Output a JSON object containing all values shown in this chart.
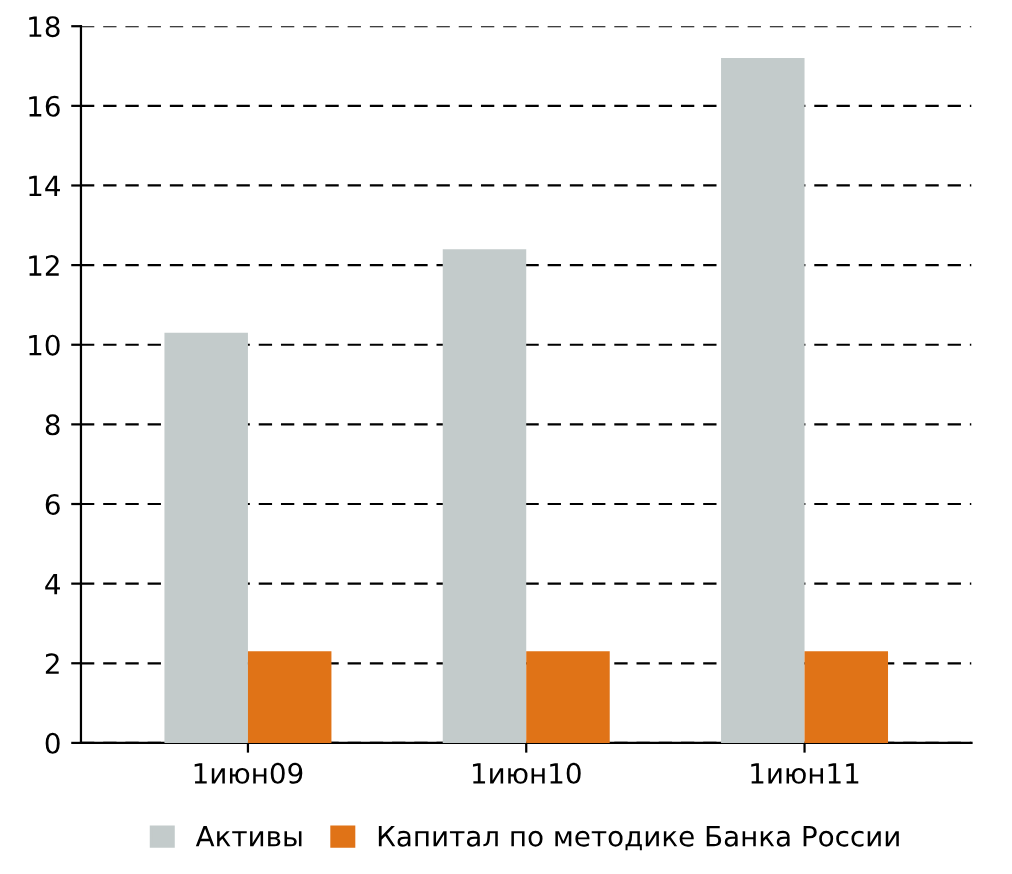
{
  "chart_data": {
    "type": "bar",
    "categories": [
      "1июн09",
      "1июн10",
      "1июн11"
    ],
    "series": [
      {
        "name": "Активы",
        "color": "#c3cbcb",
        "values": [
          10.3,
          12.4,
          17.2
        ]
      },
      {
        "name": "Капитал по методике Банка России",
        "color": "#e07317",
        "values": [
          2.3,
          2.3,
          2.3
        ]
      }
    ],
    "ylim": [
      0,
      18
    ],
    "yticks": [
      0,
      2,
      4,
      6,
      8,
      10,
      12,
      14,
      16,
      18
    ],
    "grid": "y",
    "legend": "bottom"
  }
}
